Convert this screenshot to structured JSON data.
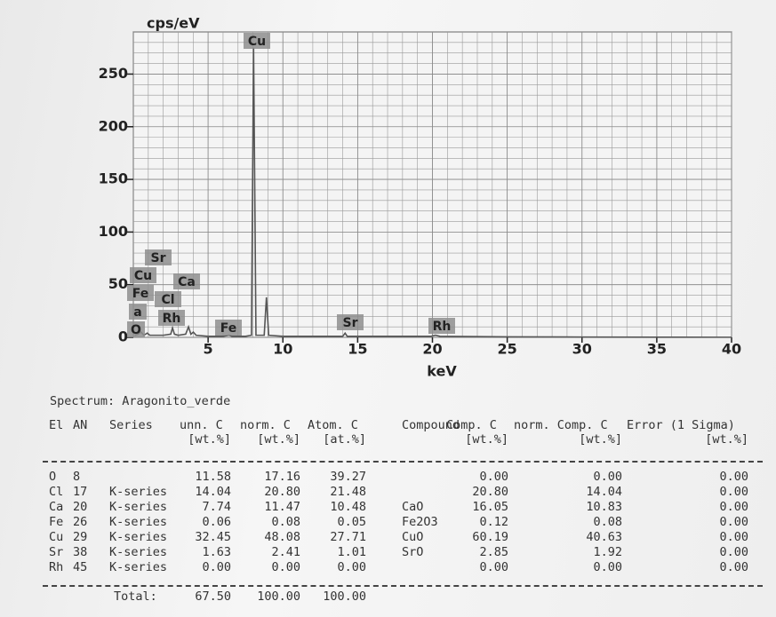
{
  "chart_data": {
    "type": "line",
    "y_label": "cps/eV",
    "x_label": "keV",
    "x": [
      0.1,
      0.3,
      0.52,
      0.7,
      0.93,
      1.1,
      1.5,
      2.0,
      2.5,
      2.62,
      2.75,
      3.0,
      3.5,
      3.69,
      3.85,
      4.01,
      4.2,
      5.0,
      6.0,
      6.4,
      6.6,
      7.5,
      7.9,
      8.04,
      8.2,
      8.75,
      8.9,
      9.05,
      10,
      12,
      14.0,
      14.16,
      14.3,
      16,
      19.9,
      20.2,
      20.5,
      25,
      30,
      35,
      40
    ],
    "series": [
      {
        "color": "#555555",
        "values": [
          2,
          3,
          5,
          2,
          4,
          2,
          2,
          2,
          3,
          9,
          3,
          2,
          3,
          10,
          3,
          5,
          2,
          1,
          1,
          2,
          1,
          1,
          2,
          275,
          2,
          2,
          38,
          2,
          1,
          1,
          1,
          4,
          1,
          1,
          1,
          2,
          1,
          0.5,
          0.3,
          0.2,
          0.1
        ]
      }
    ],
    "xlim": [
      0,
      40
    ],
    "xticks": [
      5,
      10,
      15,
      20,
      25,
      30,
      35,
      40
    ],
    "ylim": [
      0,
      290
    ],
    "yticks": [
      0,
      50,
      100,
      150,
      200,
      250
    ],
    "grid": true,
    "annotations": [
      "Cu",
      "Sr",
      "Cu",
      "Fe",
      "a",
      "O",
      "Ca",
      "Cl",
      "Rh",
      "Fe",
      "Sr",
      "Rh"
    ]
  },
  "spectrum": "Spectrum: Aragonito_verde",
  "table": {
    "headers": [
      "El",
      "AN",
      "Series",
      "unn. C",
      "norm. C",
      "Atom. C",
      "Compound",
      "Comp. C",
      "norm. Comp. C",
      "Error (1 Sigma)"
    ],
    "units": [
      null,
      null,
      null,
      "[wt.%]",
      "[wt.%]",
      "[at.%]",
      null,
      "[wt.%]",
      "[wt.%]",
      "[wt.%]"
    ],
    "rows": [
      [
        "O",
        "8",
        null,
        "11.58",
        "17.16",
        "39.27",
        null,
        "0.00",
        "0.00",
        "0.00"
      ],
      [
        "Cl",
        "17",
        "K-series",
        "14.04",
        "20.80",
        "21.48",
        null,
        "20.80",
        "14.04",
        "0.00"
      ],
      [
        "Ca",
        "20",
        "K-series",
        "7.74",
        "11.47",
        "10.48",
        "CaO",
        "16.05",
        "10.83",
        "0.00"
      ],
      [
        "Fe",
        "26",
        "K-series",
        "0.06",
        "0.08",
        "0.05",
        "Fe2O3",
        "0.12",
        "0.08",
        "0.00"
      ],
      [
        "Cu",
        "29",
        "K-series",
        "32.45",
        "48.08",
        "27.71",
        "CuO",
        "60.19",
        "40.63",
        "0.00"
      ],
      [
        "Sr",
        "38",
        "K-series",
        "1.63",
        "2.41",
        "1.01",
        "SrO",
        "2.85",
        "1.92",
        "0.00"
      ],
      [
        "Rh",
        "45",
        "K-series",
        "0.00",
        "0.00",
        "0.00",
        null,
        "0.00",
        "0.00",
        "0.00"
      ]
    ],
    "total": {
      "label": "Total:",
      "values": [
        "67.50",
        "100.00",
        "100.00"
      ]
    }
  }
}
